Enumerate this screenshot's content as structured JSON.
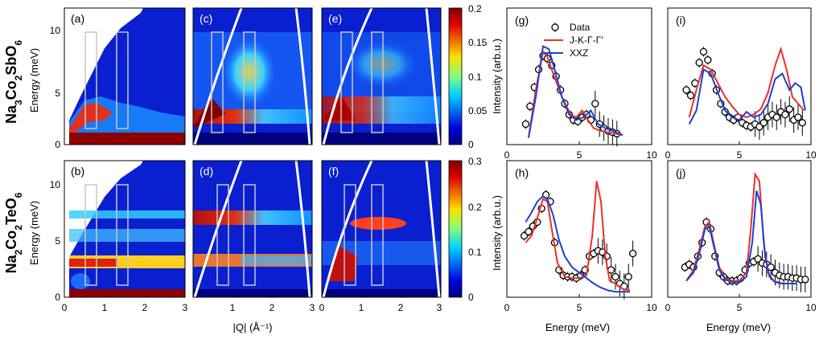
{
  "row_labels": [
    {
      "parts": [
        [
          "Na",
          ""
        ],
        [
          "3",
          "sub"
        ],
        [
          "Co",
          ""
        ],
        [
          "2",
          "sub"
        ],
        [
          "SbO",
          ""
        ],
        [
          "6",
          "sub"
        ]
      ]
    },
    {
      "parts": [
        [
          "Na",
          ""
        ],
        [
          "2",
          "sub"
        ],
        [
          "Co",
          ""
        ],
        [
          "2",
          "sub"
        ],
        [
          "TeO",
          ""
        ],
        [
          "6",
          "sub"
        ]
      ]
    }
  ],
  "map_axes": {
    "ylabel": "Energy (meV)",
    "xlabel": "|Q| (Å⁻¹)",
    "yticks": [
      "0",
      "5",
      "10"
    ],
    "xticks_first": [
      "0",
      "1",
      "2",
      "3"
    ],
    "xticks_other": [
      "0",
      "1",
      "2",
      "3"
    ]
  },
  "map_panels": {
    "a": "(a)",
    "b": "(b)",
    "c": "(c)",
    "d": "(d)",
    "e": "(e)",
    "f": "(f)"
  },
  "colorbars": [
    {
      "ticks": [
        "0.2",
        "0.15",
        "0.1",
        "0.05",
        "0"
      ],
      "max": 0.2
    },
    {
      "ticks": [
        "0.3",
        "0.2",
        "0.1",
        "0"
      ],
      "max": 0.3
    }
  ],
  "spectrum_axes": {
    "ylabel": "Intensity (arb.u.)",
    "xlabel": "Energy (meV)",
    "xticks": [
      "0",
      "5",
      "10"
    ]
  },
  "legend": {
    "data": "Data",
    "jkg": "J-K-Γ-Γ′",
    "xxz": "XXZ"
  },
  "colors": {
    "data": "#000000",
    "jkg": "#e8312a",
    "xxz": "#1f3fd6"
  },
  "chart_data": [
    {
      "panel": "(g)",
      "type": "line",
      "xlim": [
        0,
        10
      ],
      "series": [
        {
          "name": "Data",
          "x": [
            1.3,
            1.6,
            1.9,
            2.2,
            2.5,
            2.8,
            3.1,
            3.4,
            3.7,
            4.0,
            4.3,
            4.6,
            4.9,
            5.2,
            5.5,
            5.8,
            6.1,
            6.4,
            6.7,
            7.0,
            7.3,
            7.6
          ],
          "y": [
            0.15,
            0.28,
            0.42,
            0.55,
            0.65,
            0.63,
            0.58,
            0.5,
            0.4,
            0.3,
            0.22,
            0.18,
            0.17,
            0.2,
            0.22,
            0.18,
            0.3,
            0.15,
            0.12,
            0.1,
            0.09,
            0.08
          ]
        },
        {
          "name": "J-K-Γ-Γ′",
          "x": [
            1.5,
            2.0,
            2.5,
            2.8,
            3.2,
            3.8,
            4.4,
            4.8,
            5.2,
            5.6,
            6.0,
            6.5,
            7.0,
            7.5,
            8.0
          ],
          "y": [
            0.05,
            0.4,
            0.68,
            0.64,
            0.52,
            0.35,
            0.22,
            0.2,
            0.25,
            0.18,
            0.12,
            0.1,
            0.09,
            0.08,
            0.07
          ]
        },
        {
          "name": "XXZ",
          "x": [
            1.5,
            2.0,
            2.5,
            2.9,
            3.3,
            3.8,
            4.3,
            4.8,
            5.3,
            5.8,
            6.3,
            6.8,
            7.3,
            8.0
          ],
          "y": [
            0.05,
            0.35,
            0.72,
            0.7,
            0.55,
            0.35,
            0.22,
            0.18,
            0.2,
            0.25,
            0.15,
            0.12,
            0.1,
            0.07
          ]
        }
      ]
    },
    {
      "panel": "(i)",
      "type": "line",
      "xlim": [
        0,
        10
      ],
      "series": [
        {
          "name": "Data",
          "x": [
            1.3,
            1.6,
            1.9,
            2.2,
            2.5,
            2.8,
            3.1,
            3.4,
            3.7,
            4.0,
            4.3,
            4.6,
            4.9,
            5.2,
            5.5,
            5.8,
            6.1,
            6.4,
            6.7,
            7.0,
            7.3,
            7.6,
            7.9,
            8.2,
            8.5,
            8.8,
            9.1,
            9.4
          ],
          "y": [
            0.4,
            0.36,
            0.45,
            0.6,
            0.68,
            0.62,
            0.52,
            0.4,
            0.3,
            0.24,
            0.2,
            0.18,
            0.2,
            0.16,
            0.14,
            0.13,
            0.15,
            0.13,
            0.16,
            0.2,
            0.22,
            0.2,
            0.24,
            0.22,
            0.26,
            0.18,
            0.2,
            0.16
          ]
        },
        {
          "name": "J-K-Γ-Γ′",
          "x": [
            1.5,
            2.0,
            2.5,
            3.0,
            3.5,
            4.0,
            4.5,
            5.0,
            5.5,
            6.0,
            6.5,
            7.0,
            7.5,
            7.9,
            8.3,
            8.7,
            9.1,
            9.5
          ],
          "y": [
            0.2,
            0.4,
            0.58,
            0.55,
            0.45,
            0.35,
            0.28,
            0.22,
            0.2,
            0.22,
            0.26,
            0.38,
            0.58,
            0.7,
            0.55,
            0.35,
            0.3,
            0.25
          ]
        },
        {
          "name": "XXZ",
          "x": [
            1.5,
            2.0,
            2.5,
            3.0,
            3.5,
            4.0,
            4.5,
            5.0,
            5.5,
            6.0,
            6.5,
            7.0,
            7.5,
            8.0,
            8.5,
            8.9,
            9.3,
            9.6
          ],
          "y": [
            0.15,
            0.25,
            0.55,
            0.52,
            0.38,
            0.25,
            0.2,
            0.18,
            0.24,
            0.2,
            0.22,
            0.3,
            0.48,
            0.52,
            0.4,
            0.45,
            0.42,
            0.25
          ]
        }
      ]
    },
    {
      "panel": "(h)",
      "type": "line",
      "xlim": [
        0,
        10
      ],
      "series": [
        {
          "name": "Data",
          "x": [
            1.2,
            1.5,
            1.8,
            2.1,
            2.4,
            2.7,
            3.0,
            3.3,
            3.6,
            3.9,
            4.2,
            4.5,
            4.8,
            5.1,
            5.4,
            5.7,
            6.0,
            6.3,
            6.6,
            6.9,
            7.2,
            7.5,
            7.8,
            8.1,
            8.4,
            8.7
          ],
          "y": [
            0.45,
            0.48,
            0.52,
            0.55,
            0.65,
            0.75,
            0.7,
            0.4,
            0.2,
            0.16,
            0.15,
            0.15,
            0.14,
            0.16,
            0.2,
            0.3,
            0.32,
            0.34,
            0.33,
            0.3,
            0.2,
            0.15,
            0.1,
            0.08,
            0.15,
            0.32
          ]
        },
        {
          "name": "J-K-Γ-Γ′",
          "x": [
            1.3,
            1.7,
            2.1,
            2.5,
            2.8,
            3.1,
            3.5,
            4.0,
            4.5,
            5.0,
            5.5,
            5.9,
            6.2,
            6.5,
            6.8,
            7.1,
            7.5,
            8.0,
            8.5
          ],
          "y": [
            0.4,
            0.45,
            0.58,
            0.72,
            0.7,
            0.5,
            0.25,
            0.15,
            0.14,
            0.14,
            0.16,
            0.45,
            0.85,
            0.7,
            0.3,
            0.12,
            0.1,
            0.06,
            0.05
          ]
        },
        {
          "name": "XXZ",
          "x": [
            1.3,
            1.7,
            2.1,
            2.5,
            2.8,
            3.2,
            3.6,
            4.0,
            4.5,
            5.0,
            5.5,
            6.0,
            6.5,
            7.0,
            7.5,
            8.0,
            8.5
          ],
          "y": [
            0.55,
            0.62,
            0.7,
            0.74,
            0.72,
            0.6,
            0.42,
            0.3,
            0.22,
            0.18,
            0.14,
            0.1,
            0.07,
            0.05,
            0.04,
            0.04,
            0.04
          ]
        }
      ]
    },
    {
      "panel": "(j)",
      "type": "line",
      "xlim": [
        0,
        10
      ],
      "series": [
        {
          "name": "Data",
          "x": [
            1.2,
            1.5,
            1.8,
            2.1,
            2.4,
            2.7,
            3.0,
            3.3,
            3.6,
            3.9,
            4.2,
            4.5,
            4.8,
            5.1,
            5.4,
            5.7,
            6.0,
            6.3,
            6.6,
            6.9,
            7.2,
            7.5,
            7.8,
            8.1,
            8.4,
            8.7,
            9.0,
            9.3,
            9.6
          ],
          "y": [
            0.22,
            0.24,
            0.22,
            0.3,
            0.4,
            0.55,
            0.5,
            0.3,
            0.18,
            0.15,
            0.12,
            0.12,
            0.12,
            0.14,
            0.2,
            0.25,
            0.26,
            0.28,
            0.25,
            0.24,
            0.22,
            0.18,
            0.16,
            0.15,
            0.15,
            0.14,
            0.14,
            0.13,
            0.13
          ]
        },
        {
          "name": "J-K-Γ-Γ′",
          "x": [
            1.3,
            1.8,
            2.2,
            2.6,
            2.9,
            3.2,
            3.6,
            4.0,
            4.5,
            5.0,
            5.5,
            5.8,
            6.1,
            6.4,
            6.7,
            7.0,
            7.4,
            8.0,
            9.0
          ],
          "y": [
            0.12,
            0.2,
            0.35,
            0.52,
            0.55,
            0.4,
            0.22,
            0.14,
            0.12,
            0.12,
            0.18,
            0.5,
            0.9,
            0.85,
            0.4,
            0.18,
            0.12,
            0.1,
            0.1
          ]
        },
        {
          "name": "XXZ",
          "x": [
            1.3,
            1.8,
            2.2,
            2.6,
            2.9,
            3.2,
            3.6,
            4.0,
            4.5,
            5.0,
            5.5,
            5.9,
            6.2,
            6.5,
            6.8,
            7.1,
            7.5,
            8.0,
            9.0
          ],
          "y": [
            0.12,
            0.18,
            0.32,
            0.5,
            0.52,
            0.38,
            0.2,
            0.13,
            0.11,
            0.11,
            0.15,
            0.4,
            0.78,
            0.68,
            0.3,
            0.15,
            0.11,
            0.1,
            0.1
          ]
        }
      ]
    }
  ]
}
